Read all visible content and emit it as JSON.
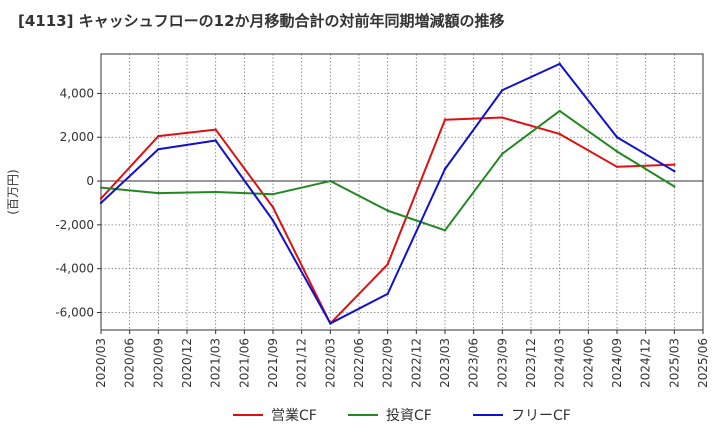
{
  "chart_data": {
    "type": "line",
    "title": "[4113]  キャッシュフローの12か月移動合計の対前年同期増減額の推移",
    "xlabel": "",
    "ylabel": "(百万円)",
    "ylim": [
      -6800,
      5800
    ],
    "yticks": [
      -6000,
      -4000,
      -2000,
      0,
      2000,
      4000
    ],
    "ytick_labels": [
      "-6,000",
      "-4,000",
      "-2,000",
      "0",
      "2,000",
      "4,000"
    ],
    "xticks": [
      "2020/03",
      "2020/06",
      "2020/09",
      "2020/12",
      "2021/03",
      "2021/06",
      "2021/09",
      "2021/12",
      "2022/03",
      "2022/06",
      "2022/09",
      "2022/12",
      "2023/03",
      "2023/06",
      "2023/09",
      "2023/12",
      "2024/03",
      "2024/06",
      "2024/09",
      "2024/12",
      "2025/03",
      "2025/06"
    ],
    "grid": true,
    "legend_position": "bottom-center",
    "series": [
      {
        "name": "営業CF",
        "color": "#dd1111",
        "x": [
          "2020/03",
          "2020/09",
          "2021/03",
          "2021/09",
          "2022/03",
          "2022/09",
          "2023/03",
          "2023/09",
          "2024/03",
          "2024/09",
          "2025/03"
        ],
        "values": [
          -800,
          2050,
          2350,
          -1200,
          -6500,
          -3800,
          2800,
          2900,
          2150,
          650,
          750
        ]
      },
      {
        "name": "投資CF",
        "color": "#228822",
        "x": [
          "2020/03",
          "2020/09",
          "2021/03",
          "2021/09",
          "2022/03",
          "2022/09",
          "2023/03",
          "2023/09",
          "2024/03",
          "2024/09",
          "2025/03"
        ],
        "values": [
          -300,
          -550,
          -500,
          -600,
          0,
          -1350,
          -2250,
          1250,
          3200,
          1350,
          -250
        ]
      },
      {
        "name": "フリーCF",
        "color": "#1111cc",
        "x": [
          "2020/03",
          "2020/09",
          "2021/03",
          "2021/09",
          "2022/03",
          "2022/09",
          "2023/03",
          "2023/09",
          "2024/03",
          "2024/09",
          "2025/03"
        ],
        "values": [
          -1000,
          1450,
          1850,
          -1800,
          -6500,
          -5150,
          550,
          4150,
          5350,
          2000,
          450
        ]
      }
    ]
  }
}
